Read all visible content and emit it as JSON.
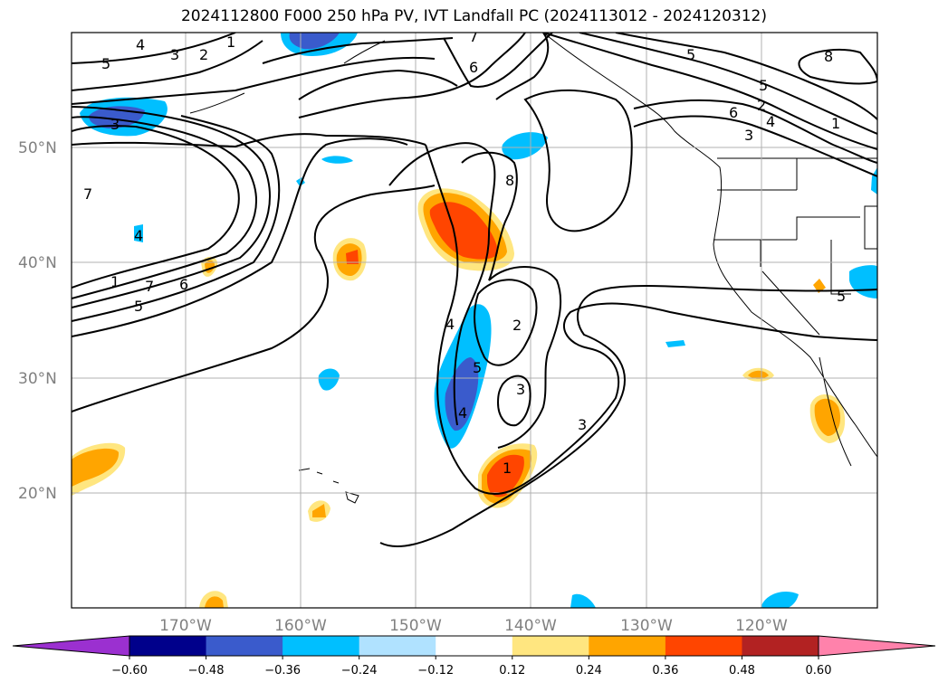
{
  "title": "2024112800 F000 250 hPa PV, IVT Landfall PC (2024113012 - 2024120312)",
  "map": {
    "lat_labels": [
      "50°N",
      "40°N",
      "30°N",
      "20°N"
    ],
    "lon_labels": [
      "170°W",
      "160°W",
      "150°W",
      "140°W",
      "130°W",
      "120°W"
    ],
    "contour_labels": [
      "4",
      "3",
      "2",
      "1",
      "5",
      "7",
      "6",
      "5",
      "3",
      "8",
      "5",
      "6",
      "2",
      "4",
      "3",
      "1",
      "7",
      "8",
      "4",
      "1",
      "7",
      "6",
      "5",
      "4",
      "2",
      "5",
      "4",
      "3",
      "5",
      "3",
      "1"
    ]
  },
  "colorbar": {
    "ticks": [
      "−0.60",
      "−0.48",
      "−0.36",
      "−0.24",
      "−0.12",
      "0.12",
      "0.24",
      "0.36",
      "0.48",
      "0.60"
    ],
    "colors": [
      "#9b30d0",
      "#00008b",
      "#3a5bcc",
      "#00bfff",
      "#b0e2ff",
      "#ffffff",
      "#ffe680",
      "#ffa500",
      "#ff4500",
      "#b22222",
      "#ff82ab"
    ]
  }
}
